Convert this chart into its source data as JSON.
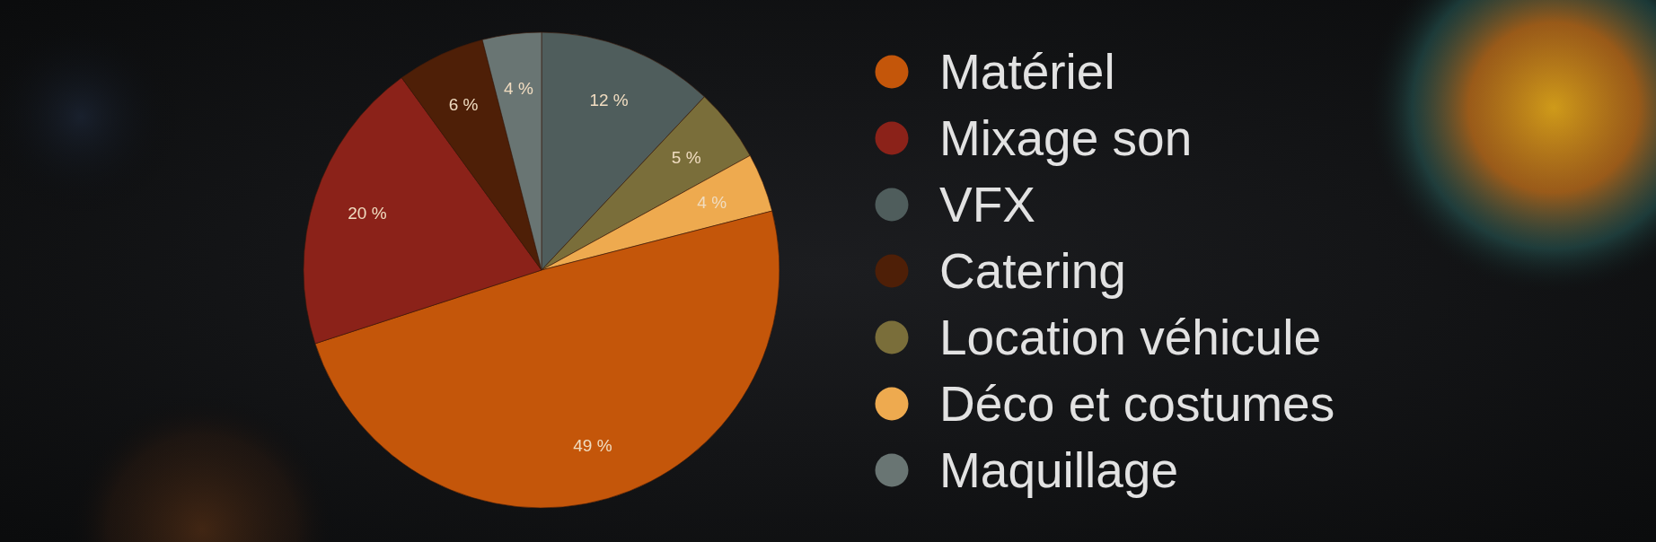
{
  "chart_data": {
    "type": "pie",
    "categories": [
      "VFX",
      "Location véhicule",
      "Déco et costumes",
      "Matériel",
      "Mixage son",
      "Catering",
      "Maquillage"
    ],
    "values": [
      12,
      5,
      4,
      49,
      20,
      6,
      4
    ],
    "colors": [
      "#4f5d5c",
      "#7a6e3a",
      "#eeaa4f",
      "#c4560a",
      "#8b2219",
      "#4e1f07",
      "#697573"
    ],
    "value_labels": [
      "12 %",
      "5 %",
      "4 %",
      "49 %",
      "20 %",
      "6 %",
      "4 %"
    ],
    "legend": "right"
  }
}
